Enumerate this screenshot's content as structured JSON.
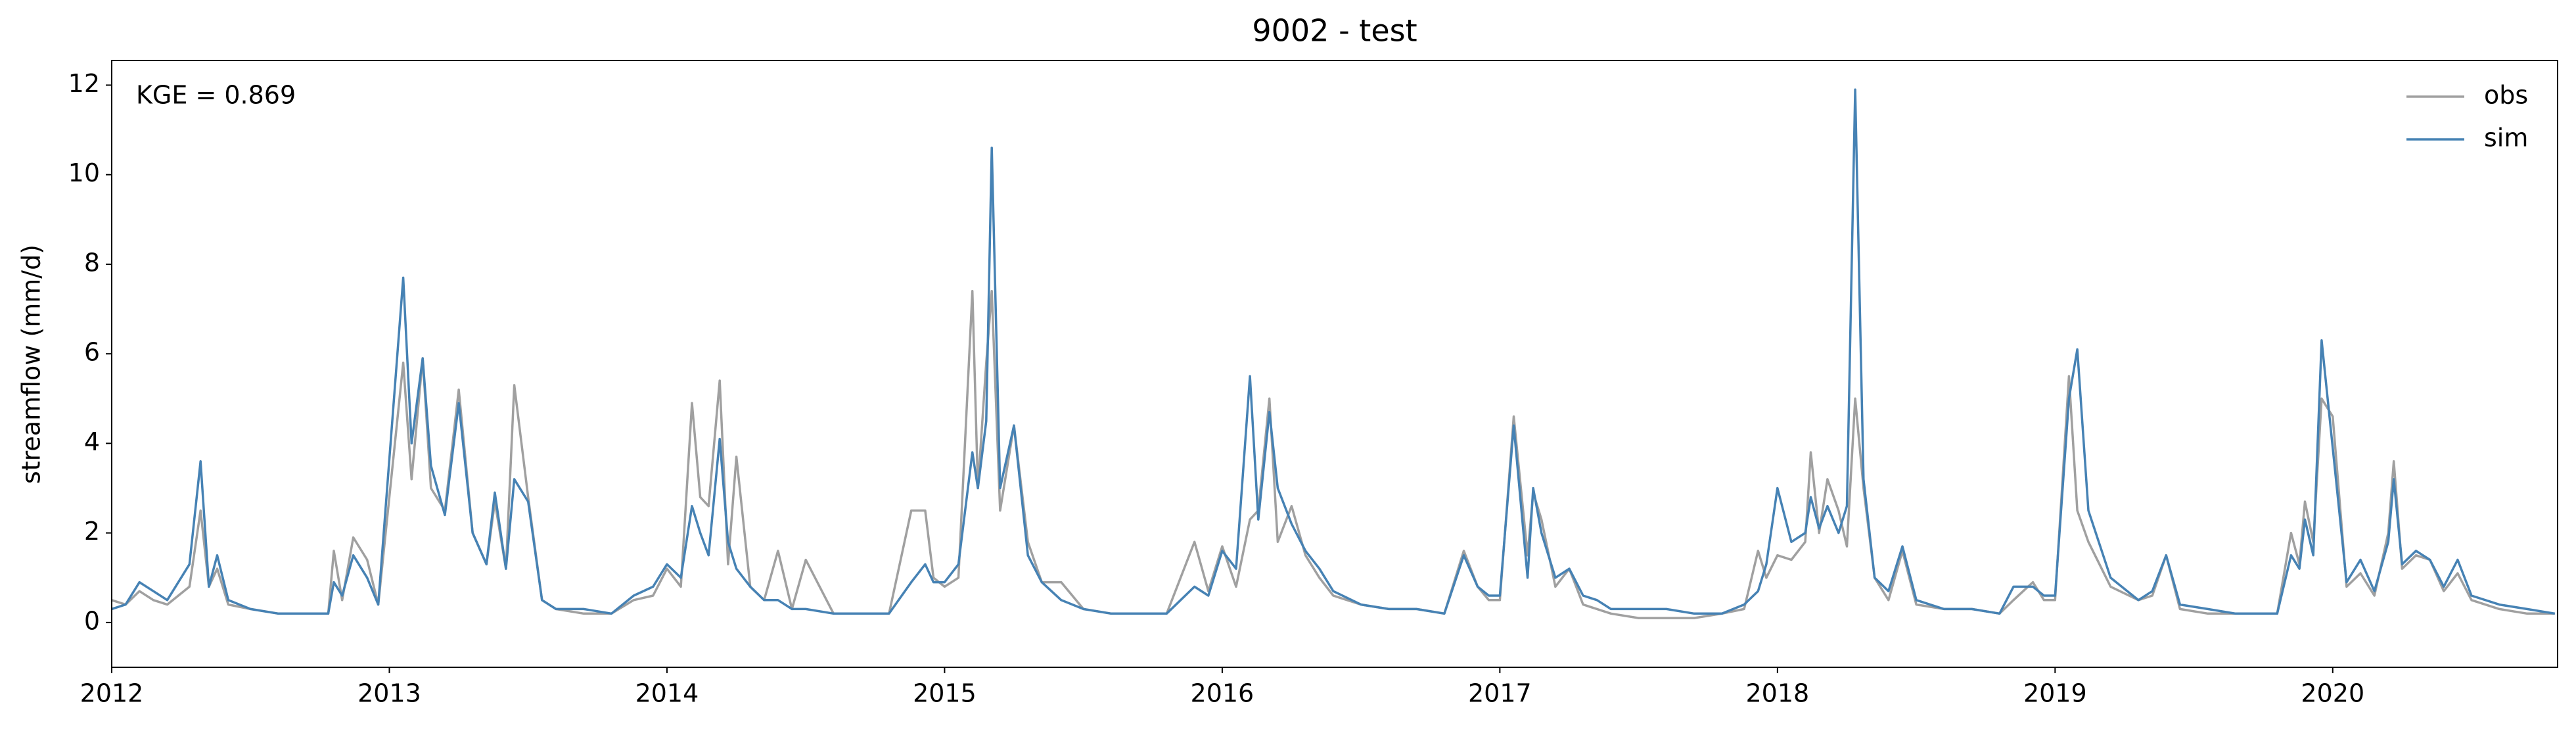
{
  "chart_data": {
    "type": "line",
    "title": "9002 - test",
    "ylabel": "streamflow (mm/d)",
    "annotation": "KGE = 0.869",
    "legend": "upper right",
    "grid": false,
    "xlim": [
      2012,
      2020.81
    ],
    "xticks": [
      2012,
      2013,
      2014,
      2015,
      2016,
      2017,
      2018,
      2019,
      2020
    ],
    "ylim": [
      -1,
      12.55
    ],
    "yticks": [
      0,
      2,
      4,
      6,
      8,
      10,
      12
    ],
    "x": [
      2012,
      2012.05,
      2012.1,
      2012.15,
      2012.2,
      2012.28,
      2012.32,
      2012.35,
      2012.38,
      2012.42,
      2012.5,
      2012.6,
      2012.7,
      2012.78,
      2012.8,
      2012.83,
      2012.87,
      2012.92,
      2012.96,
      2013.05,
      2013.08,
      2013.12,
      2013.15,
      2013.2,
      2013.25,
      2013.3,
      2013.35,
      2013.38,
      2013.42,
      2013.45,
      2013.5,
      2013.55,
      2013.6,
      2013.7,
      2013.8,
      2013.88,
      2013.95,
      2014,
      2014.05,
      2014.09,
      2014.12,
      2014.15,
      2014.19,
      2014.22,
      2014.25,
      2014.3,
      2014.35,
      2014.4,
      2014.45,
      2014.5,
      2014.6,
      2014.7,
      2014.8,
      2014.88,
      2014.93,
      2014.96,
      2015,
      2015.05,
      2015.1,
      2015.12,
      2015.15,
      2015.17,
      2015.2,
      2015.25,
      2015.3,
      2015.35,
      2015.42,
      2015.5,
      2015.6,
      2015.7,
      2015.8,
      2015.9,
      2015.95,
      2016,
      2016.05,
      2016.1,
      2016.13,
      2016.17,
      2016.2,
      2016.25,
      2016.3,
      2016.35,
      2016.4,
      2016.5,
      2016.6,
      2016.7,
      2016.8,
      2016.87,
      2016.92,
      2016.96,
      2017,
      2017.05,
      2017.1,
      2017.12,
      2017.15,
      2017.2,
      2017.25,
      2017.3,
      2017.35,
      2017.4,
      2017.5,
      2017.6,
      2017.7,
      2017.8,
      2017.88,
      2017.93,
      2017.96,
      2018,
      2018.05,
      2018.1,
      2018.12,
      2018.15,
      2018.18,
      2018.22,
      2018.25,
      2018.28,
      2018.31,
      2018.35,
      2018.4,
      2018.45,
      2018.5,
      2018.6,
      2018.7,
      2018.8,
      2018.85,
      2018.92,
      2018.96,
      2019,
      2019.05,
      2019.08,
      2019.12,
      2019.2,
      2019.3,
      2019.35,
      2019.4,
      2019.45,
      2019.55,
      2019.65,
      2019.75,
      2019.8,
      2019.85,
      2019.88,
      2019.9,
      2019.93,
      2019.96,
      2020,
      2020.05,
      2020.1,
      2020.15,
      2020.2,
      2020.22,
      2020.25,
      2020.3,
      2020.35,
      2020.4,
      2020.45,
      2020.5,
      2020.6,
      2020.7,
      2020.8
    ],
    "series": [
      {
        "name": "obs",
        "color": "#a0a0a0",
        "values": [
          0.5,
          0.4,
          0.7,
          0.5,
          0.4,
          0.8,
          2.5,
          0.8,
          1.2,
          0.4,
          0.3,
          0.2,
          0.2,
          0.2,
          1.6,
          0.5,
          1.9,
          1.4,
          0.4,
          5.8,
          3.2,
          5.9,
          3.0,
          2.5,
          5.2,
          2.0,
          1.3,
          2.7,
          1.2,
          5.3,
          2.8,
          0.5,
          0.3,
          0.2,
          0.2,
          0.5,
          0.6,
          1.2,
          0.8,
          4.9,
          2.8,
          2.6,
          5.4,
          1.3,
          3.7,
          0.8,
          0.5,
          1.6,
          0.3,
          1.4,
          0.2,
          0.2,
          0.2,
          2.5,
          2.5,
          1.0,
          0.8,
          1.0,
          7.4,
          3.0,
          5.8,
          7.4,
          2.5,
          4.4,
          1.8,
          0.9,
          0.9,
          0.3,
          0.2,
          0.2,
          0.2,
          1.8,
          0.7,
          1.7,
          0.8,
          2.3,
          2.5,
          5.0,
          1.8,
          2.6,
          1.5,
          1.0,
          0.6,
          0.4,
          0.3,
          0.3,
          0.2,
          1.6,
          0.8,
          0.5,
          0.5,
          4.6,
          1.5,
          2.9,
          2.3,
          0.8,
          1.2,
          0.4,
          0.3,
          0.2,
          0.1,
          0.1,
          0.1,
          0.2,
          0.3,
          1.6,
          1.0,
          1.5,
          1.4,
          1.8,
          3.8,
          2.0,
          3.2,
          2.5,
          1.7,
          5.0,
          3.0,
          1.0,
          0.5,
          1.6,
          0.4,
          0.3,
          0.3,
          0.2,
          0.5,
          0.9,
          0.5,
          0.5,
          5.5,
          2.5,
          1.8,
          0.8,
          0.5,
          0.6,
          1.5,
          0.3,
          0.2,
          0.2,
          0.2,
          0.2,
          2.0,
          1.3,
          2.7,
          1.8,
          5.0,
          4.6,
          0.8,
          1.1,
          0.6,
          2.0,
          3.6,
          1.2,
          1.5,
          1.4,
          0.7,
          1.1,
          0.5,
          0.3,
          0.2,
          0.2
        ]
      },
      {
        "name": "sim",
        "color": "#4682b4",
        "values": [
          0.3,
          0.4,
          0.9,
          0.7,
          0.5,
          1.3,
          3.6,
          0.8,
          1.5,
          0.5,
          0.3,
          0.2,
          0.2,
          0.2,
          0.9,
          0.6,
          1.5,
          1.0,
          0.4,
          7.7,
          4.0,
          5.9,
          3.5,
          2.4,
          4.9,
          2.0,
          1.3,
          2.9,
          1.2,
          3.2,
          2.7,
          0.5,
          0.3,
          0.3,
          0.2,
          0.6,
          0.8,
          1.3,
          1.0,
          2.6,
          2.0,
          1.5,
          4.1,
          1.8,
          1.2,
          0.8,
          0.5,
          0.5,
          0.3,
          0.3,
          0.2,
          0.2,
          0.2,
          0.9,
          1.3,
          0.9,
          0.9,
          1.3,
          3.8,
          3.0,
          4.5,
          10.6,
          3.0,
          4.4,
          1.5,
          0.9,
          0.5,
          0.3,
          0.2,
          0.2,
          0.2,
          0.8,
          0.6,
          1.6,
          1.2,
          5.5,
          2.3,
          4.7,
          3.0,
          2.2,
          1.6,
          1.2,
          0.7,
          0.4,
          0.3,
          0.3,
          0.2,
          1.5,
          0.8,
          0.6,
          0.6,
          4.4,
          1.0,
          3.0,
          2.0,
          1.0,
          1.2,
          0.6,
          0.5,
          0.3,
          0.3,
          0.3,
          0.2,
          0.2,
          0.4,
          0.7,
          1.3,
          3.0,
          1.8,
          2.0,
          2.8,
          2.1,
          2.6,
          2.0,
          2.6,
          11.9,
          3.2,
          1.0,
          0.7,
          1.7,
          0.5,
          0.3,
          0.3,
          0.2,
          0.8,
          0.8,
          0.6,
          0.6,
          5.0,
          6.1,
          2.5,
          1.0,
          0.5,
          0.7,
          1.5,
          0.4,
          0.3,
          0.2,
          0.2,
          0.2,
          1.5,
          1.2,
          2.3,
          1.5,
          6.3,
          3.9,
          0.9,
          1.4,
          0.7,
          1.8,
          3.2,
          1.3,
          1.6,
          1.4,
          0.8,
          1.4,
          0.6,
          0.4,
          0.3,
          0.2
        ]
      }
    ]
  }
}
